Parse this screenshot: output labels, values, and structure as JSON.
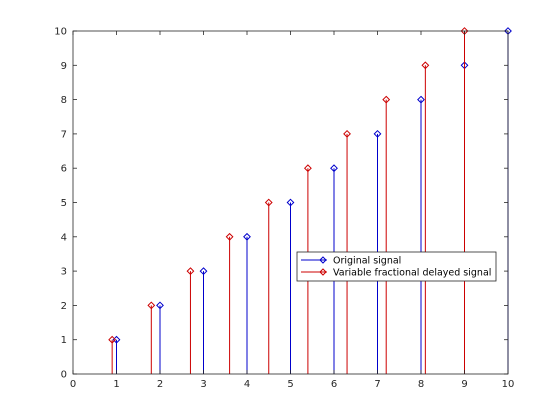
{
  "chart_data": {
    "type": "stem",
    "xlim": [
      0,
      10
    ],
    "ylim": [
      0,
      10
    ],
    "xticks": [
      0,
      1,
      2,
      3,
      4,
      5,
      6,
      7,
      8,
      9,
      10
    ],
    "yticks": [
      0,
      1,
      2,
      3,
      4,
      5,
      6,
      7,
      8,
      9,
      10
    ],
    "grid": false,
    "legend_position": "center-right",
    "series": [
      {
        "name": "Original signal",
        "color": "#0000cc",
        "marker": "diamond",
        "x": [
          1,
          2,
          3,
          4,
          5,
          6,
          7,
          8,
          9,
          10
        ],
        "y": [
          1,
          2,
          3,
          4,
          5,
          6,
          7,
          8,
          9,
          10
        ]
      },
      {
        "name": "Variable fractional delayed signal",
        "color": "#cc0000",
        "marker": "diamond",
        "x": [
          0.9,
          1.8,
          2.7,
          3.6,
          4.5,
          5.4,
          6.3,
          7.2,
          8.1,
          9.0
        ],
        "y": [
          1,
          2,
          3,
          4,
          5,
          6,
          7,
          8,
          9,
          10
        ]
      }
    ]
  }
}
